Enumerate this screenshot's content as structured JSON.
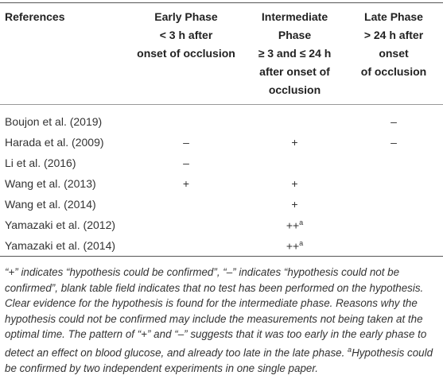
{
  "table": {
    "header": [
      {
        "lines": [
          "References"
        ]
      },
      {
        "lines": [
          "Early Phase",
          "< 3 h after",
          "onset of occlusion"
        ]
      },
      {
        "lines": [
          "Intermediate",
          "Phase",
          "≥ 3 and ≤ 24 h",
          "after onset of",
          "occlusion"
        ]
      },
      {
        "lines": [
          "Late Phase",
          "> 24 h after",
          "onset",
          "of occlusion"
        ]
      }
    ],
    "rows": [
      [
        "Boujon et al. (2019)",
        null,
        null,
        "–"
      ],
      [
        "Harada et al. (2009)",
        "–",
        "+",
        "–"
      ],
      [
        "Li et al. (2016)",
        "–",
        null,
        null
      ],
      [
        "Wang et al. (2013)",
        "+",
        "+",
        null
      ],
      [
        "Wang et al. (2014)",
        null,
        "+",
        null
      ],
      [
        "Yamazaki et al. (2012)",
        null,
        {
          "text": "++",
          "sup": "a"
        },
        null
      ],
      [
        "Yamazaki et al. (2014)",
        null,
        {
          "text": "++",
          "sup": "a"
        },
        null
      ]
    ]
  },
  "footnote": {
    "text": "“+” indicates “hypothesis could be confirmed”, “–” indicates “hypothesis could not be confirmed”, blank table field indicates that no test has been performed on the hypothesis. Clear evidence for the hypothesis is found for the intermediate phase. Reasons why the hypothesis could not be confirmed may include the measurements not being taken at the optimal time. The pattern of “+” and “–” suggests that it was too early in the early phase to detect an effect on blood glucose, and already too late in the late phase. ",
    "sup": "a",
    "text2": "Hypothesis could be confirmed by two independent experiments in one single paper."
  }
}
